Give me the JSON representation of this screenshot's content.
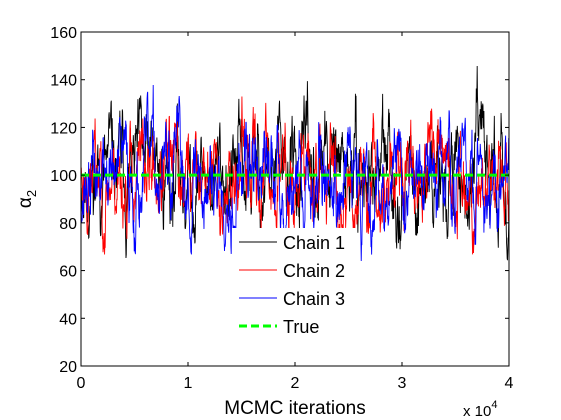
{
  "chart_data": {
    "type": "line",
    "xlabel": "MCMC iterations",
    "ylabel_base": "α",
    "ylabel_sub": "2",
    "x_multiplier": {
      "base": "x 10",
      "exp": "4"
    },
    "xlim": [
      0,
      4
    ],
    "ylim": [
      20,
      160
    ],
    "xticks": [
      0,
      1,
      2,
      3,
      4
    ],
    "xtick_labels": [
      "0",
      "1",
      "2",
      "3",
      "4"
    ],
    "yticks": [
      20,
      40,
      60,
      80,
      100,
      120,
      140,
      160
    ],
    "ytick_labels": [
      "20",
      "40",
      "60",
      "80",
      "100",
      "120",
      "140",
      "160"
    ],
    "grid": false,
    "legend_position": "center-bottom",
    "true_value": 100,
    "n_points": 1400,
    "series": [
      {
        "name": "Chain 1",
        "color": "#000000",
        "mean": 100,
        "spread": 14,
        "min": 64,
        "max": 158,
        "seed": 11
      },
      {
        "name": "Chain 2",
        "color": "#ff0000",
        "mean": 100,
        "spread": 13,
        "min": 59,
        "max": 152,
        "seed": 23
      },
      {
        "name": "Chain 3",
        "color": "#0000ff",
        "mean": 100,
        "spread": 13,
        "min": 64,
        "max": 148,
        "seed": 37
      }
    ],
    "reference": {
      "name": "True",
      "color": "#00ff00",
      "value": 100
    }
  }
}
